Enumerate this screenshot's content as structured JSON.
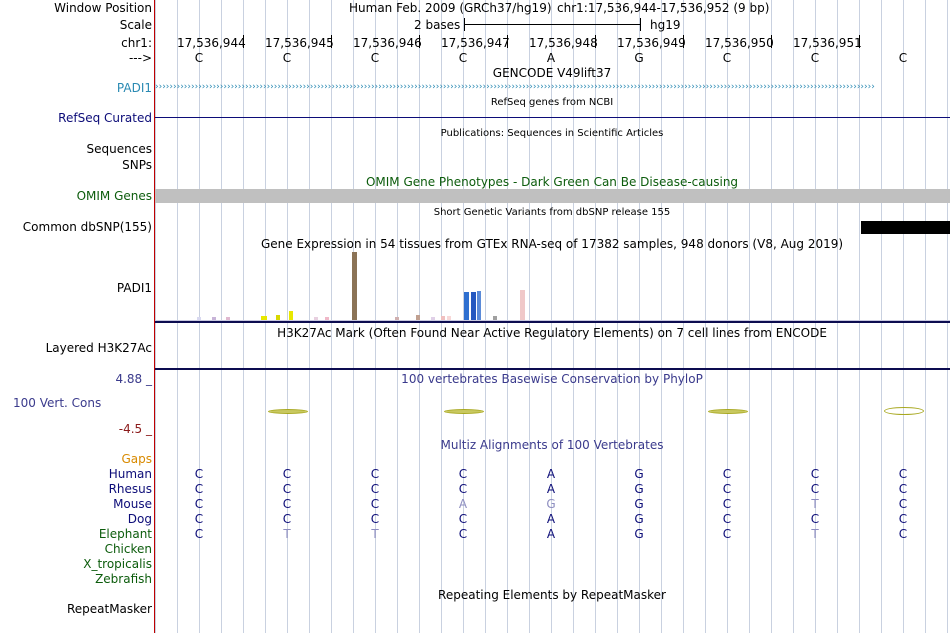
{
  "header": {
    "window_position_label": "Window Position",
    "assembly": "Human Feb. 2009 (GRCh37/hg19)",
    "position": "chr1:17,536,944-17,536,952 (9 bp)",
    "scale_label": "Scale",
    "scale_text": "2 bases",
    "scale_db": "hg19",
    "chrom_label": "chr1:",
    "strand_label": "--->",
    "ruler_ticks": [
      "17,536,944",
      "17,536,945",
      "17,536,946",
      "17,536,947",
      "17,536,948",
      "17,536,949",
      "17,536,950",
      "17,536,951"
    ],
    "bases": [
      "C",
      "C",
      "C",
      "C",
      "A",
      "G",
      "C",
      "C",
      "C"
    ]
  },
  "tracks": {
    "gencode_title": "GENCODE V49lift37",
    "gencode_gene": "PADI1",
    "refseq_title": "RefSeq genes from NCBI",
    "refseq_label": "RefSeq Curated",
    "publications_title": "Publications: Sequences in Scientific Articles",
    "sequences_label": "Sequences",
    "snps_label": "SNPs",
    "omim_title": "OMIM Gene Phenotypes - Dark Green Can Be Disease-causing",
    "omim_label": "OMIM Genes",
    "dbsnp_title": "Short Genetic Variants from dbSNP release 155",
    "dbsnp_label": "Common dbSNP(155)",
    "gtex_title": "Gene Expression in 54 tissues from GTEx RNA-seq of 17382 samples, 948 donors (V8, Aug 2019)",
    "gtex_label": "PADI1",
    "h3k27ac_title": "H3K27Ac Mark (Often Found Near Active Regulatory Elements) on 7 cell lines from ENCODE",
    "h3k27ac_label": "Layered H3K27Ac",
    "cons_max": "4.88 _",
    "cons_title": "100 vertebrates Basewise Conservation by PhyloP",
    "cons_label": "100 Vert. Cons",
    "cons_min": "-4.5 _",
    "multiz_title": "Multiz Alignments of 100 Vertebrates",
    "gaps_label": "Gaps",
    "repeat_title": "Repeating Elements by RepeatMasker",
    "repeat_label": "RepeatMasker"
  },
  "alignment": [
    {
      "species": "Human",
      "bases": [
        "C",
        "C",
        "C",
        "C",
        "A",
        "G",
        "C",
        "C",
        "C"
      ]
    },
    {
      "species": "Rhesus",
      "bases": [
        "C",
        "C",
        "C",
        "C",
        "A",
        "G",
        "C",
        "C",
        "C"
      ]
    },
    {
      "species": "Mouse",
      "bases": [
        "C",
        "C",
        "C",
        "A",
        "G",
        "G",
        "C",
        "T",
        "C"
      ]
    },
    {
      "species": "Dog",
      "bases": [
        "C",
        "C",
        "C",
        "C",
        "A",
        "G",
        "C",
        "C",
        "C"
      ]
    },
    {
      "species": "Elephant",
      "bases": [
        "C",
        "T",
        "T",
        "C",
        "A",
        "G",
        "C",
        "T",
        "C"
      ]
    },
    {
      "species": "Chicken",
      "bases": []
    },
    {
      "species": "X_tropicalis",
      "bases": []
    },
    {
      "species": "Zebrafish",
      "bases": []
    }
  ],
  "colors": {
    "gencode": "#2a8ab3",
    "refseq": "#0c0c78",
    "omim": "#0c5c0c",
    "separator": "#c00000",
    "cons": "#3a3a8c",
    "cons_min": "#8b1a1a",
    "gaps": "#d88a00",
    "mismatch": "#8e8ec0",
    "phylop_glyph": "#a8a820"
  },
  "gtex_bars": [
    {
      "value": 0.04,
      "color": "#d9d9f0"
    },
    {
      "value": 0.05,
      "color": "#c8b4d8"
    },
    {
      "value": 0.04,
      "color": "#e0b8d0"
    },
    {
      "value": 0.06,
      "color": "#e8e800"
    },
    {
      "value": 0.08,
      "color": "#d8d800"
    },
    {
      "value": 0.13,
      "color": "#e8e800"
    },
    {
      "value": 0.05,
      "color": "#e8d0e0"
    },
    {
      "value": 0.05,
      "color": "#f0b8c8"
    },
    {
      "value": 1.0,
      "color": "#8b7356"
    },
    {
      "value": 0.05,
      "color": "#d0b0b0"
    },
    {
      "value": 0.08,
      "color": "#c0a090"
    },
    {
      "value": 0.04,
      "color": "#e0d0e8"
    },
    {
      "value": 0.06,
      "color": "#f0c0c0"
    },
    {
      "value": 0.06,
      "color": "#f8d8d8"
    },
    {
      "value": 0.41,
      "color": "#2e6fd0"
    },
    {
      "value": 0.41,
      "color": "#2558c0"
    },
    {
      "value": 0.43,
      "color": "#5a8ad8"
    },
    {
      "value": 0.06,
      "color": "#a0a0a0"
    },
    {
      "value": 0.44,
      "color": "#f0c8c8"
    }
  ]
}
